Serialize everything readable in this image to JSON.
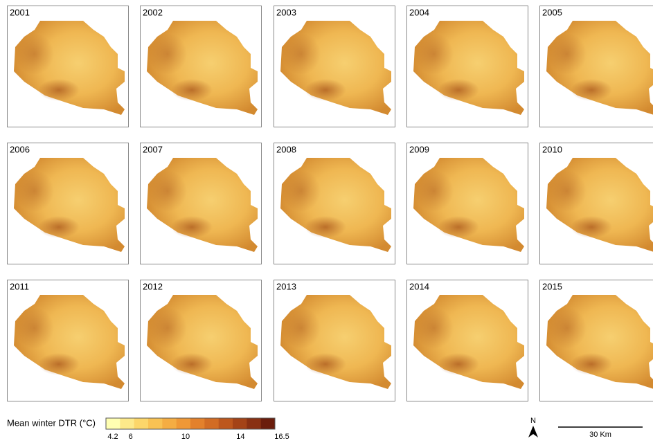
{
  "panels": [
    {
      "label": "2001"
    },
    {
      "label": "2002"
    },
    {
      "label": "2003"
    },
    {
      "label": "2004"
    },
    {
      "label": "2005"
    },
    {
      "label": "2006"
    },
    {
      "label": "2007"
    },
    {
      "label": "2008"
    },
    {
      "label": "2009"
    },
    {
      "label": "2010"
    },
    {
      "label": "2011"
    },
    {
      "label": "2012"
    },
    {
      "label": "2013"
    },
    {
      "label": "2014"
    },
    {
      "label": "2015"
    }
  ],
  "legend": {
    "title": "Mean winter DTR (°C)",
    "ticks": [
      4.2,
      6,
      10,
      14,
      16.5
    ],
    "colors": [
      "#ffffb2",
      "#fde98a",
      "#fcd66a",
      "#f9c253",
      "#f5ad43",
      "#ef9836",
      "#e3812c",
      "#d26c24",
      "#bd571d",
      "#a44317",
      "#893012",
      "#6b1d0c"
    ]
  },
  "north_arrow": "N",
  "scale_bar": "30 Km"
}
